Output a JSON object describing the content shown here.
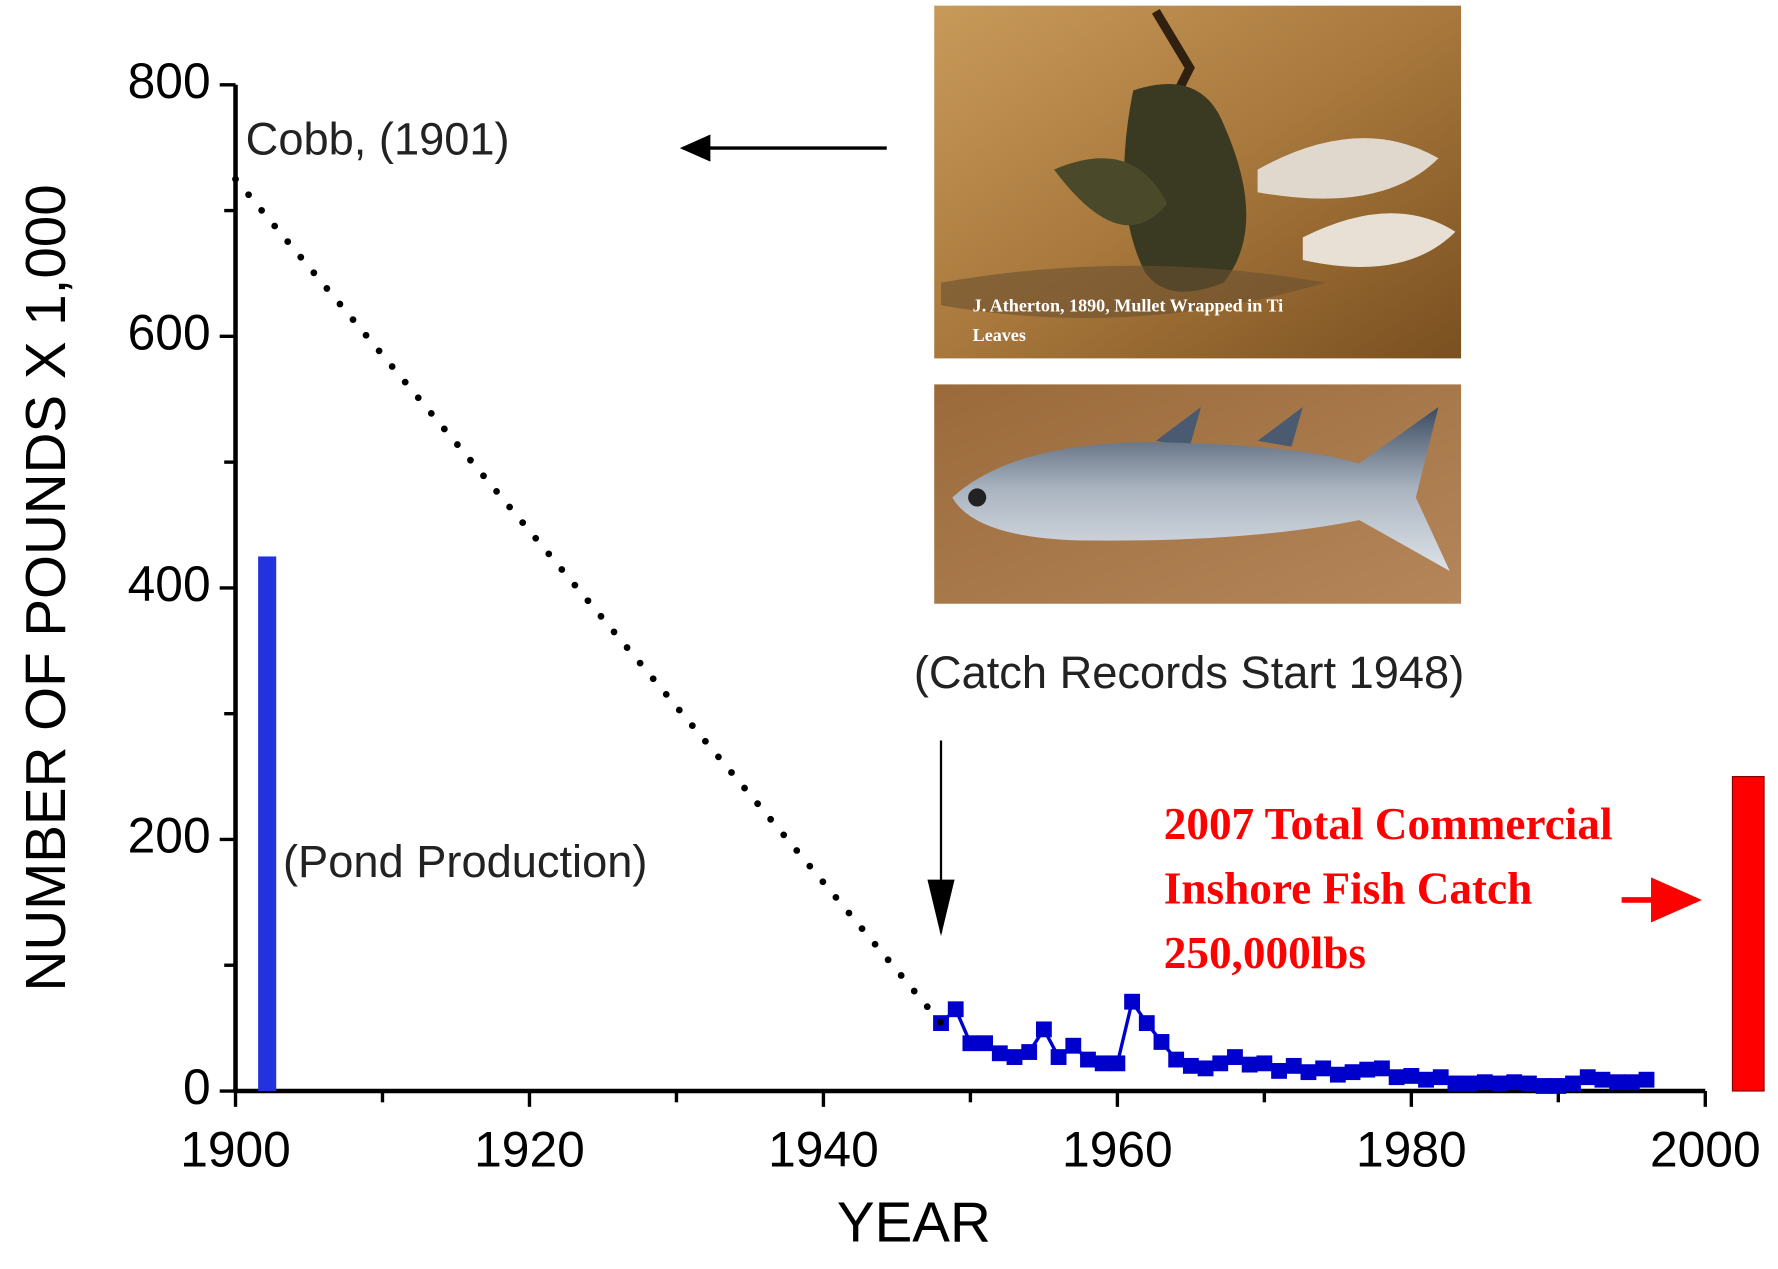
{
  "chart_data": {
    "type": "line",
    "xlabel": "YEAR",
    "ylabel": "NUMBER OF POUNDS X 1,000",
    "xlim": [
      1900,
      2000
    ],
    "ylim": [
      0,
      800
    ],
    "xticks": [
      1900,
      1920,
      1940,
      1960,
      1980,
      2000
    ],
    "yticks": [
      0,
      200,
      400,
      600,
      800
    ],
    "xminorticks": [
      1910,
      1930,
      1950,
      1970,
      1990
    ],
    "yminorticks": [
      100,
      300,
      500,
      700
    ],
    "series": [
      {
        "color": "#0000cc",
        "x": [
          1948,
          1949,
          1950,
          1951,
          1952,
          1953,
          1954,
          1955,
          1956,
          1957,
          1958,
          1959,
          1960,
          1961,
          1962,
          1963,
          1964,
          1965,
          1966,
          1967,
          1968,
          1969,
          1970,
          1971,
          1972,
          1973,
          1974,
          1975,
          1976,
          1977,
          1978,
          1979,
          1980,
          1981,
          1982,
          1983,
          1984,
          1985,
          1986,
          1987,
          1988,
          1989,
          1990,
          1991,
          1992,
          1993,
          1994,
          1995,
          1996
        ],
        "values": [
          54,
          65,
          38,
          38,
          30,
          27,
          31,
          49,
          27,
          36,
          25,
          22,
          22,
          71,
          54,
          39,
          25,
          20,
          18,
          22,
          27,
          21,
          22,
          16,
          20,
          15,
          18,
          13,
          15,
          17,
          18,
          11,
          12,
          9,
          11,
          6,
          6,
          7,
          6,
          7,
          6,
          4,
          4,
          6,
          11,
          9,
          7,
          7,
          9
        ]
      },
      {
        "color": "#000000",
        "style": "dotted",
        "x": [
          1900,
          1948
        ],
        "values": [
          725,
          54
        ]
      }
    ],
    "pond_bar": {
      "x": 1901,
      "value": 425,
      "color": "#2233dd"
    },
    "commercial_bar": {
      "value": 250,
      "color": "#ff0000"
    },
    "annotations": {
      "cobb": "Cobb, (1901)",
      "pond": "(Pond Production)",
      "catch_records": "(Catch Records Start 1948)",
      "commercial": [
        "2007 Total Commercial",
        "Inshore Fish Catch",
        "250,000lbs"
      ],
      "painting_caption": [
        "J. Atherton,  1890, Mullet  Wrapped  in Ti",
        "Leaves"
      ]
    }
  }
}
